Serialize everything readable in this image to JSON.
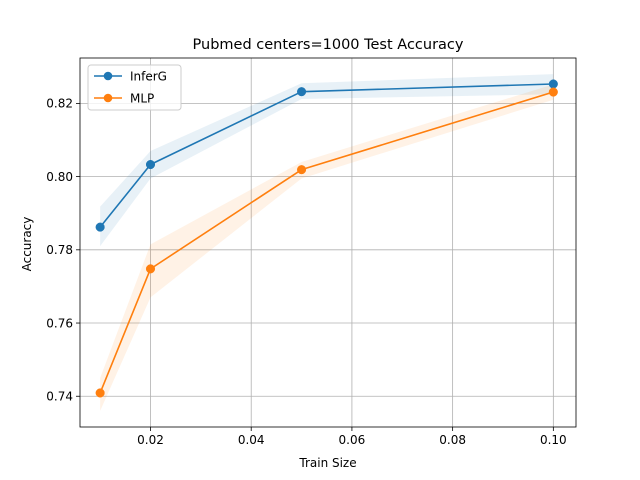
{
  "chart_data": {
    "type": "line",
    "title": "Pubmed  centers=1000 Test Accuracy",
    "xlabel": "Train Size",
    "ylabel": "Accuracy",
    "x": [
      0.01,
      0.02,
      0.05,
      0.1
    ],
    "xlim": [
      0.006,
      0.1045
    ],
    "ylim": [
      0.7316,
      0.8324
    ],
    "xticks": [
      0.02,
      0.04,
      0.06,
      0.08,
      0.1
    ],
    "xtick_labels": [
      "0.02",
      "0.04",
      "0.06",
      "0.08",
      "0.10"
    ],
    "yticks": [
      0.74,
      0.76,
      0.78,
      0.8,
      0.82
    ],
    "ytick_labels": [
      "0.74",
      "0.76",
      "0.78",
      "0.80",
      "0.82"
    ],
    "grid": true,
    "legend_position": "top-left",
    "series": [
      {
        "name": "InferG",
        "color": "#1f77b4",
        "values": [
          0.7862,
          0.8033,
          0.8232,
          0.8253
        ],
        "band_lower": [
          0.781,
          0.7995,
          0.8212,
          0.8225
        ],
        "band_upper": [
          0.7918,
          0.807,
          0.8255,
          0.828
        ]
      },
      {
        "name": "MLP",
        "color": "#ff7f0e",
        "values": [
          0.7409,
          0.7748,
          0.8019,
          0.8231
        ],
        "band_lower": [
          0.736,
          0.767,
          0.7995,
          0.821
        ],
        "band_upper": [
          0.745,
          0.7815,
          0.804,
          0.8252
        ]
      }
    ]
  }
}
